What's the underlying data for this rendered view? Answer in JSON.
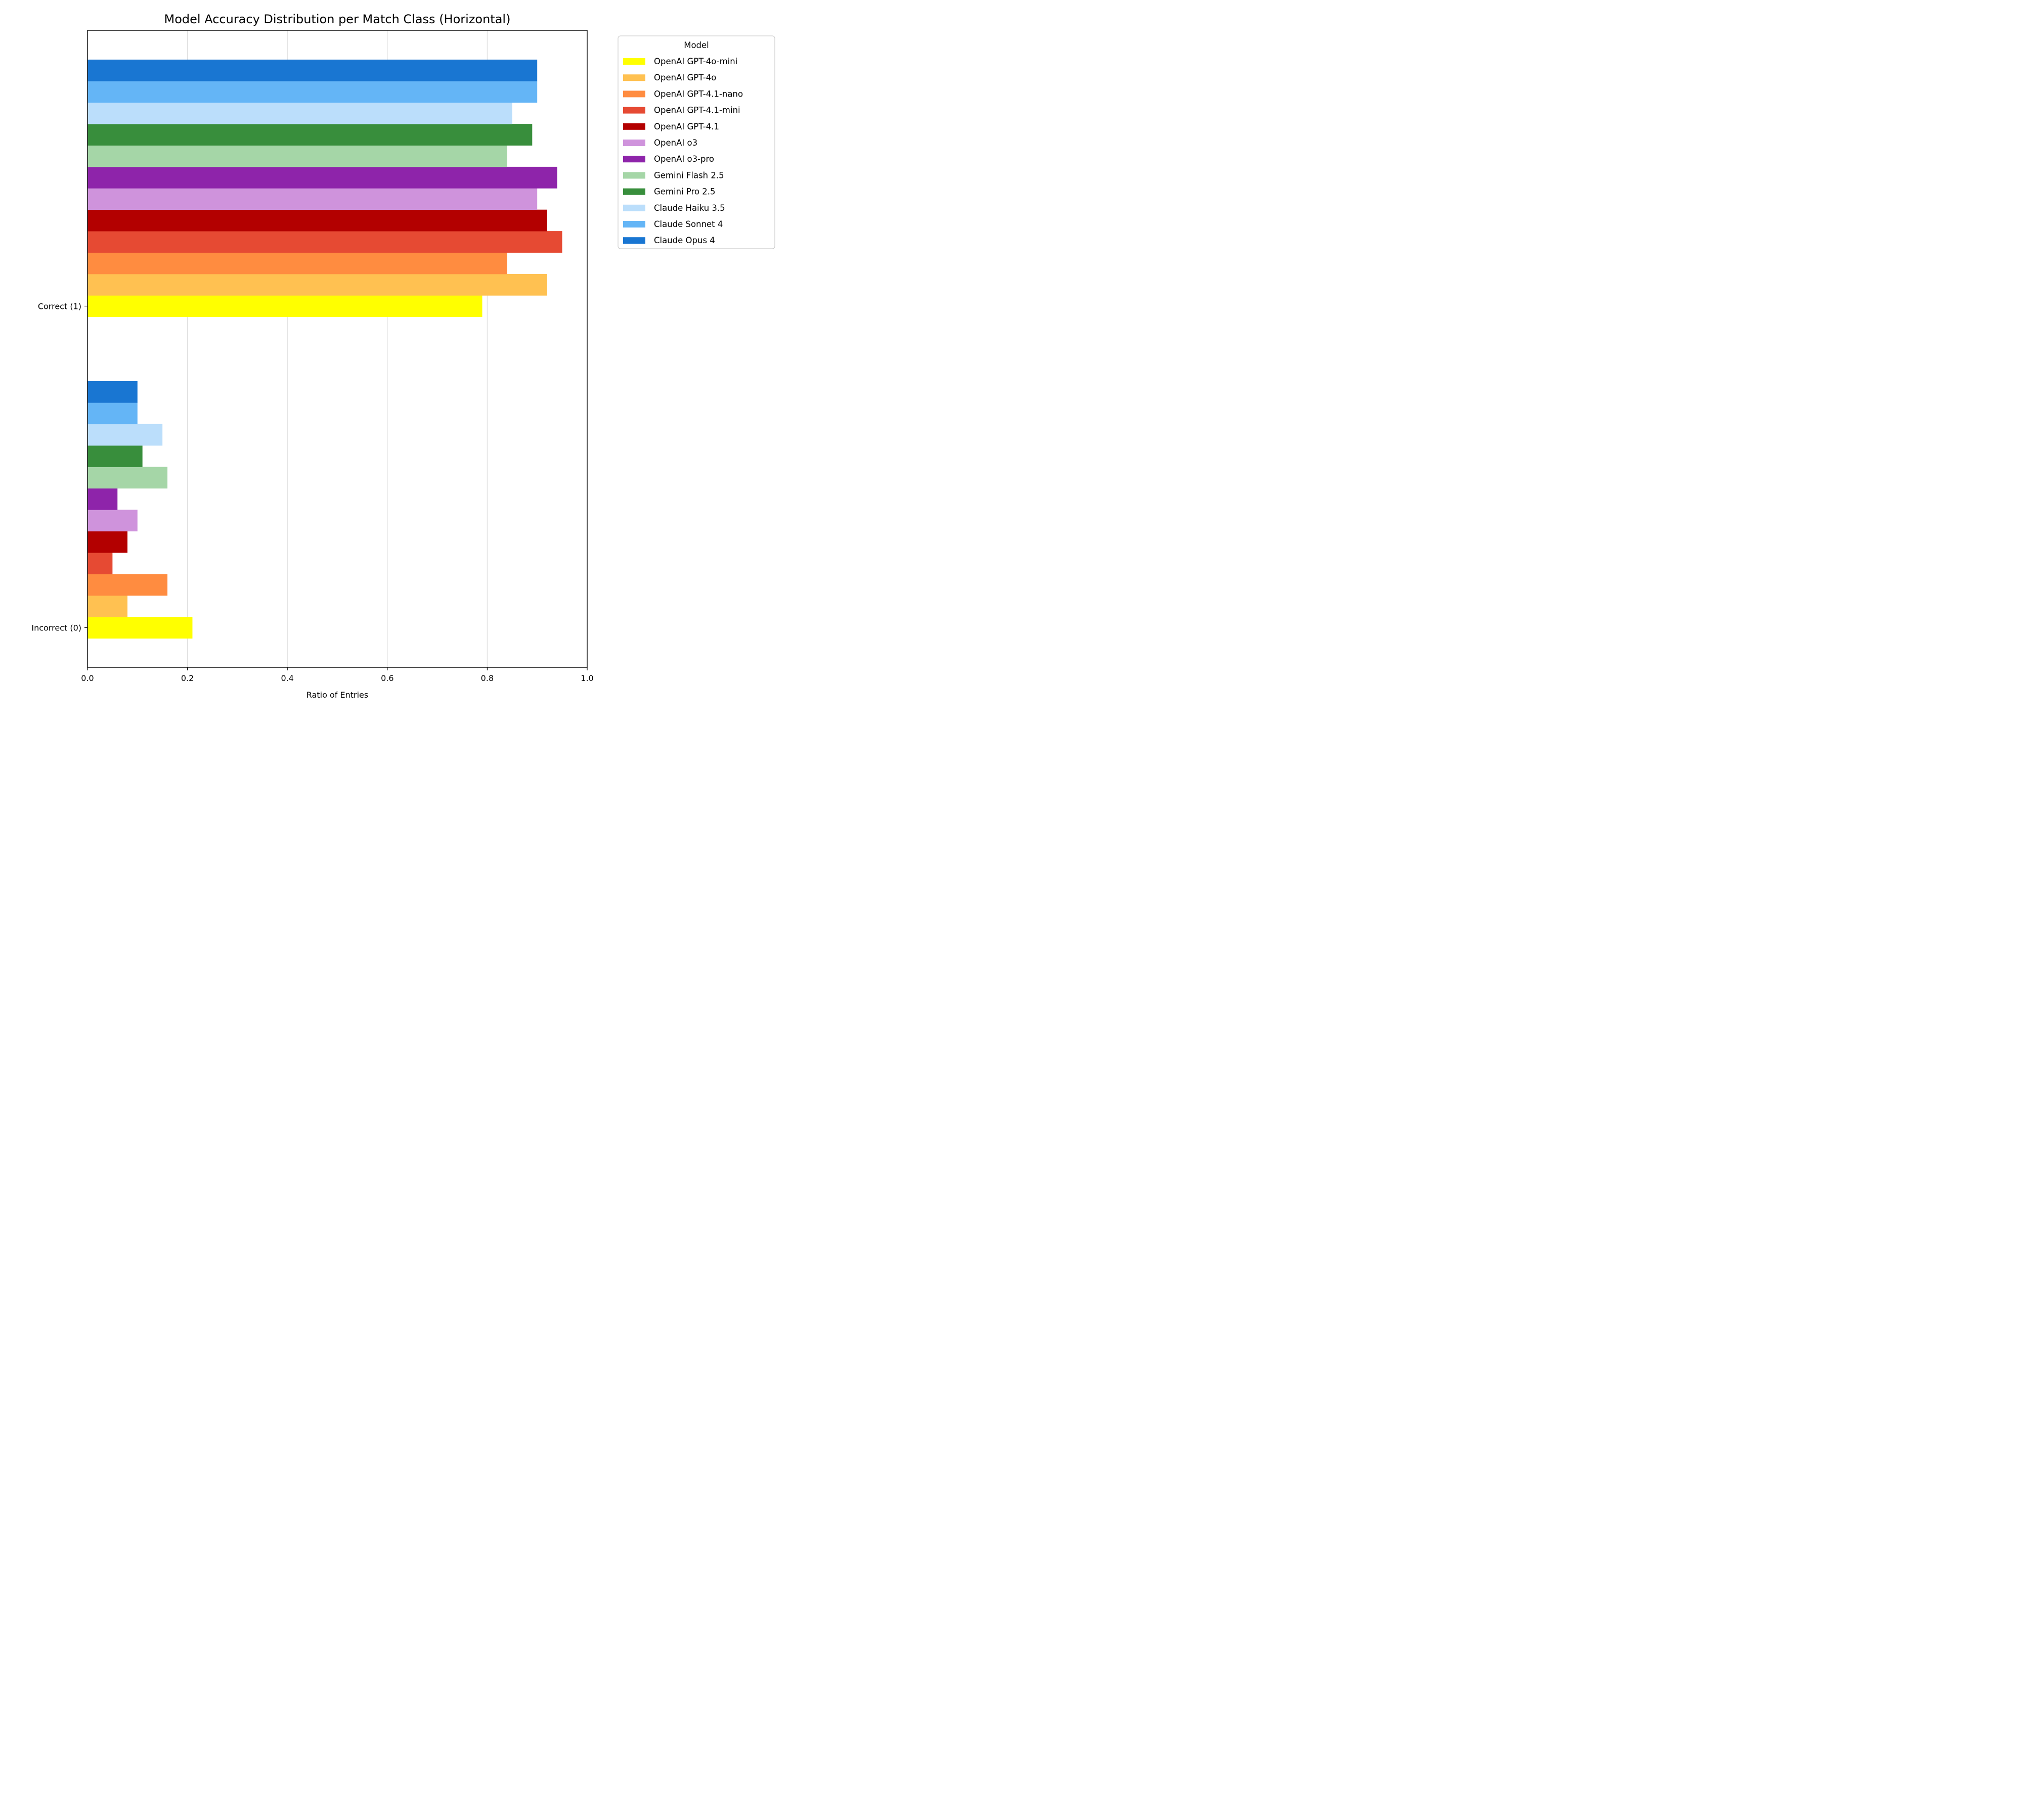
{
  "chart_data": {
    "type": "bar",
    "orientation": "horizontal",
    "title": "Model Accuracy Distribution per Match Class (Horizontal)",
    "xlabel": "Ratio of Entries",
    "ylabel": "",
    "xlim": [
      0.0,
      1.0
    ],
    "x_ticks": [
      "0.0",
      "0.2",
      "0.4",
      "0.6",
      "0.8",
      "1.0"
    ],
    "grid": "vertical",
    "legend_title": "Model",
    "legend_placement": "outside-right-top",
    "categories": [
      "Incorrect (0)",
      "Correct (1)"
    ],
    "series": [
      {
        "name": "OpenAI GPT-4o-mini",
        "color": "#ffff00",
        "values": [
          0.21,
          0.79
        ]
      },
      {
        "name": "OpenAI GPT-4o",
        "color": "#ffc151",
        "values": [
          0.08,
          0.92
        ]
      },
      {
        "name": "OpenAI GPT-4.1-nano",
        "color": "#ff8c40",
        "values": [
          0.16,
          0.84
        ]
      },
      {
        "name": "OpenAI GPT-4.1-mini",
        "color": "#e64a33",
        "values": [
          0.05,
          0.95
        ]
      },
      {
        "name": "OpenAI GPT-4.1",
        "color": "#b30000",
        "values": [
          0.08,
          0.92
        ]
      },
      {
        "name": "OpenAI o3",
        "color": "#cf93dc",
        "values": [
          0.1,
          0.9
        ]
      },
      {
        "name": "OpenAI o3-pro",
        "color": "#8e24aa",
        "values": [
          0.06,
          0.94
        ]
      },
      {
        "name": "Gemini Flash 2.5",
        "color": "#a5d6a7",
        "values": [
          0.16,
          0.84
        ]
      },
      {
        "name": "Gemini Pro 2.5",
        "color": "#388e3c",
        "values": [
          0.11,
          0.89
        ]
      },
      {
        "name": "Claude Haiku 3.5",
        "color": "#bbdefb",
        "values": [
          0.15,
          0.85
        ]
      },
      {
        "name": "Claude Sonnet 4",
        "color": "#64b5f6",
        "values": [
          0.1,
          0.9
        ]
      },
      {
        "name": "Claude Opus 4",
        "color": "#1976d2",
        "values": [
          0.1,
          0.9
        ]
      }
    ]
  }
}
